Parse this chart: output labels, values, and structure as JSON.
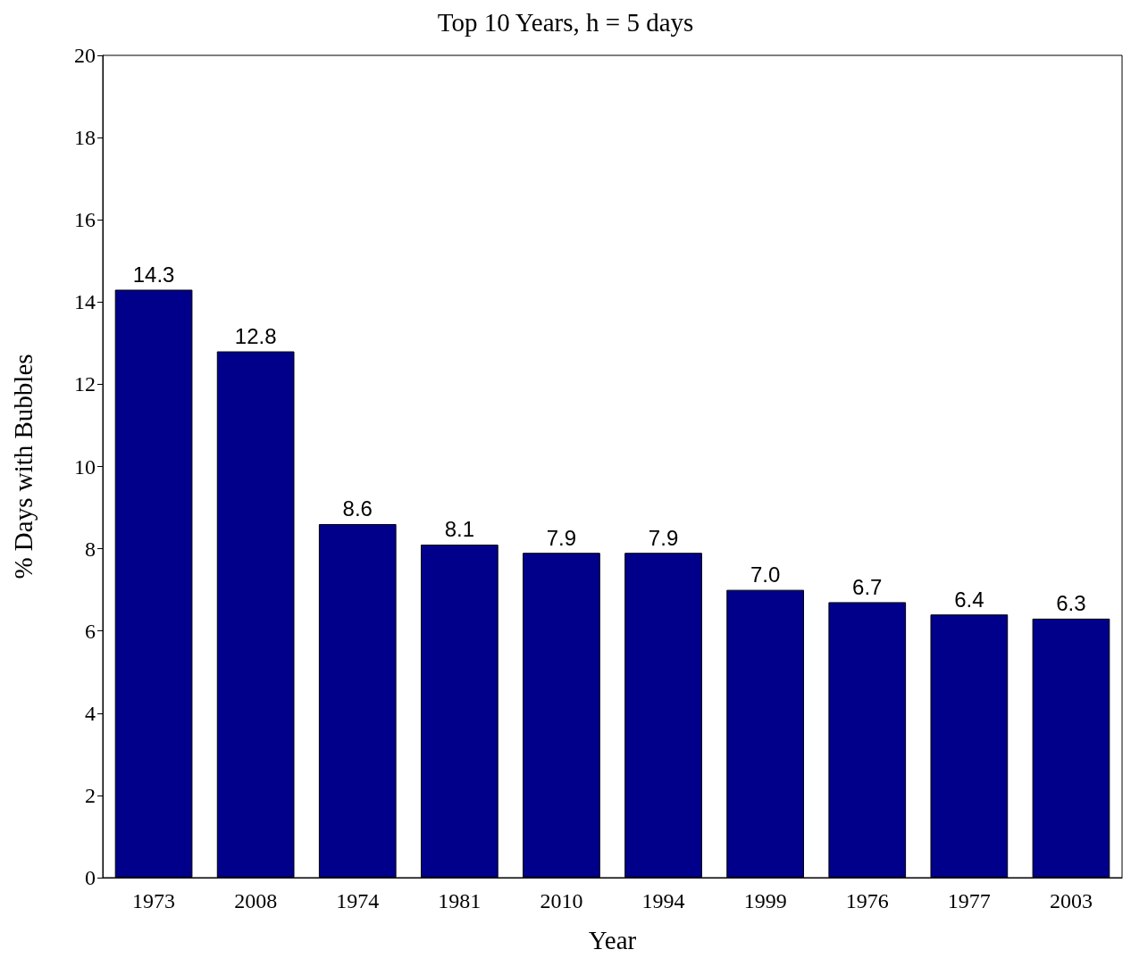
{
  "chart_data": {
    "type": "bar",
    "title": "Top 10 Years, h = 5 days",
    "xlabel": "Year",
    "ylabel": "% Days with Bubbles",
    "categories": [
      "1973",
      "2008",
      "1974",
      "1981",
      "2010",
      "1994",
      "1999",
      "1976",
      "1977",
      "2003"
    ],
    "values": [
      14.3,
      12.8,
      8.6,
      8.1,
      7.9,
      7.9,
      7.0,
      6.7,
      6.4,
      6.3
    ],
    "value_labels": [
      "14.3",
      "12.8",
      "8.6",
      "8.1",
      "7.9",
      "7.9",
      "7.0",
      "6.7",
      "6.4",
      "6.3"
    ],
    "color": "#00008b",
    "ylim": [
      0,
      20
    ],
    "yticks": [
      0,
      2,
      4,
      6,
      8,
      10,
      12,
      14,
      16,
      18,
      20
    ],
    "grid": false
  }
}
